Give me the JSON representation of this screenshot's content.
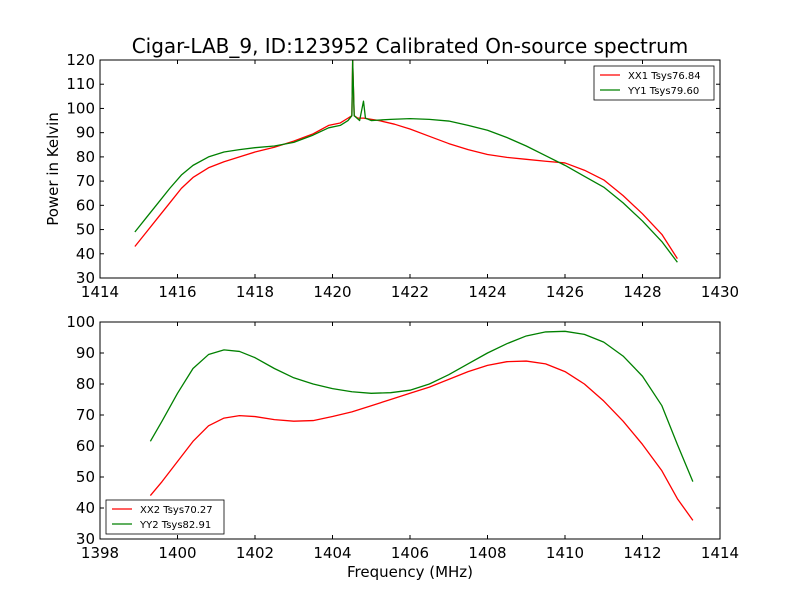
{
  "figure": {
    "title": "Cigar-LAB_9, ID:123952 Calibrated On-source spectrum",
    "xlabel": "Frequency (MHz)",
    "ylabel": "Power in Kelvin"
  },
  "chart_data": [
    {
      "type": "line",
      "xlim": [
        1414,
        1430
      ],
      "ylim": [
        30,
        120
      ],
      "xticks": [
        1414,
        1416,
        1418,
        1420,
        1422,
        1424,
        1426,
        1428,
        1430
      ],
      "yticks": [
        30,
        40,
        50,
        60,
        70,
        80,
        90,
        100,
        110,
        120
      ],
      "ylabel": "Power in Kelvin",
      "xlabel": "",
      "grid": false,
      "legend_position": "top-right",
      "series": [
        {
          "name": "XX1 Tsys76.84",
          "color": "#ff0000",
          "points": [
            [
              1414.9,
              43
            ],
            [
              1415.2,
              49
            ],
            [
              1415.5,
              55
            ],
            [
              1415.8,
              61
            ],
            [
              1416.1,
              67
            ],
            [
              1416.4,
              71.5
            ],
            [
              1416.8,
              75.5
            ],
            [
              1417.2,
              78
            ],
            [
              1417.6,
              80
            ],
            [
              1418.0,
              82
            ],
            [
              1418.5,
              84
            ],
            [
              1419.0,
              86.5
            ],
            [
              1419.5,
              89.5
            ],
            [
              1419.9,
              93
            ],
            [
              1420.2,
              94
            ],
            [
              1420.4,
              96
            ],
            [
              1420.5,
              97
            ],
            [
              1420.52,
              120
            ],
            [
              1420.56,
              97
            ],
            [
              1420.65,
              96
            ],
            [
              1420.8,
              96
            ],
            [
              1421.2,
              95
            ],
            [
              1421.6,
              93.5
            ],
            [
              1422.0,
              91.5
            ],
            [
              1422.5,
              88.5
            ],
            [
              1423.0,
              85.5
            ],
            [
              1423.5,
              83
            ],
            [
              1424.0,
              81
            ],
            [
              1424.5,
              79.8
            ],
            [
              1425.0,
              79
            ],
            [
              1425.5,
              78.2
            ],
            [
              1426.0,
              77.5
            ],
            [
              1426.5,
              74.5
            ],
            [
              1427.0,
              70.5
            ],
            [
              1427.5,
              64
            ],
            [
              1428.0,
              56.5
            ],
            [
              1428.5,
              48
            ],
            [
              1428.9,
              38
            ]
          ]
        },
        {
          "name": "YY1 Tsys79.60",
          "color": "#008000",
          "points": [
            [
              1414.9,
              49
            ],
            [
              1415.2,
              55
            ],
            [
              1415.5,
              61
            ],
            [
              1415.8,
              67
            ],
            [
              1416.1,
              72.5
            ],
            [
              1416.4,
              76.5
            ],
            [
              1416.8,
              80
            ],
            [
              1417.2,
              82
            ],
            [
              1417.6,
              83
            ],
            [
              1418.0,
              83.8
            ],
            [
              1418.5,
              84.5
            ],
            [
              1419.0,
              86
            ],
            [
              1419.5,
              89
            ],
            [
              1419.9,
              92
            ],
            [
              1420.2,
              93
            ],
            [
              1420.4,
              95
            ],
            [
              1420.5,
              97
            ],
            [
              1420.52,
              120
            ],
            [
              1420.56,
              97
            ],
            [
              1420.7,
              95
            ],
            [
              1420.8,
              103
            ],
            [
              1420.85,
              96
            ],
            [
              1421.0,
              95
            ],
            [
              1421.5,
              95.5
            ],
            [
              1422.0,
              95.8
            ],
            [
              1422.5,
              95.5
            ],
            [
              1423.0,
              94.8
            ],
            [
              1423.5,
              93
            ],
            [
              1424.0,
              91
            ],
            [
              1424.5,
              88
            ],
            [
              1425.0,
              84.5
            ],
            [
              1425.5,
              80.5
            ],
            [
              1426.0,
              76.5
            ],
            [
              1426.5,
              72
            ],
            [
              1427.0,
              67.5
            ],
            [
              1427.5,
              61
            ],
            [
              1428.0,
              53.5
            ],
            [
              1428.5,
              45
            ],
            [
              1428.9,
              36.5
            ]
          ]
        }
      ]
    },
    {
      "type": "line",
      "xlim": [
        1398,
        1414
      ],
      "ylim": [
        30,
        100
      ],
      "xticks": [
        1398,
        1400,
        1402,
        1404,
        1406,
        1408,
        1410,
        1412,
        1414
      ],
      "yticks": [
        30,
        40,
        50,
        60,
        70,
        80,
        90,
        100
      ],
      "ylabel": "",
      "xlabel": "Frequency (MHz)",
      "grid": false,
      "legend_position": "bottom-left",
      "series": [
        {
          "name": "XX2 Tsys70.27",
          "color": "#ff0000",
          "points": [
            [
              1399.3,
              44
            ],
            [
              1399.6,
              48.5
            ],
            [
              1400.0,
              55
            ],
            [
              1400.4,
              61.5
            ],
            [
              1400.8,
              66.5
            ],
            [
              1401.2,
              69
            ],
            [
              1401.6,
              69.8
            ],
            [
              1402.0,
              69.5
            ],
            [
              1402.5,
              68.5
            ],
            [
              1403.0,
              68
            ],
            [
              1403.5,
              68.2
            ],
            [
              1404.0,
              69.5
            ],
            [
              1404.5,
              71
            ],
            [
              1405.0,
              73
            ],
            [
              1405.5,
              75
            ],
            [
              1406.0,
              77
            ],
            [
              1406.5,
              79
            ],
            [
              1407.0,
              81.5
            ],
            [
              1407.5,
              84
            ],
            [
              1408.0,
              86
            ],
            [
              1408.5,
              87.2
            ],
            [
              1409.0,
              87.4
            ],
            [
              1409.5,
              86.5
            ],
            [
              1410.0,
              84
            ],
            [
              1410.5,
              80
            ],
            [
              1411.0,
              74.5
            ],
            [
              1411.5,
              68
            ],
            [
              1412.0,
              60.5
            ],
            [
              1412.5,
              52
            ],
            [
              1412.9,
              43
            ],
            [
              1413.3,
              36
            ]
          ]
        },
        {
          "name": "YY2 Tsys82.91",
          "color": "#008000",
          "points": [
            [
              1399.3,
              61.5
            ],
            [
              1399.6,
              68
            ],
            [
              1400.0,
              77
            ],
            [
              1400.4,
              85
            ],
            [
              1400.8,
              89.5
            ],
            [
              1401.2,
              91
            ],
            [
              1401.6,
              90.5
            ],
            [
              1402.0,
              88.5
            ],
            [
              1402.5,
              85
            ],
            [
              1403.0,
              82
            ],
            [
              1403.5,
              80
            ],
            [
              1404.0,
              78.5
            ],
            [
              1404.5,
              77.5
            ],
            [
              1405.0,
              77
            ],
            [
              1405.5,
              77.2
            ],
            [
              1406.0,
              78
            ],
            [
              1406.5,
              80
            ],
            [
              1407.0,
              83
            ],
            [
              1407.5,
              86.5
            ],
            [
              1408.0,
              90
            ],
            [
              1408.5,
              93
            ],
            [
              1409.0,
              95.5
            ],
            [
              1409.5,
              96.8
            ],
            [
              1410.0,
              97
            ],
            [
              1410.5,
              96
            ],
            [
              1411.0,
              93.5
            ],
            [
              1411.5,
              89
            ],
            [
              1412.0,
              82.5
            ],
            [
              1412.5,
              73
            ],
            [
              1412.9,
              60.5
            ],
            [
              1413.3,
              48.5
            ]
          ]
        }
      ]
    }
  ]
}
